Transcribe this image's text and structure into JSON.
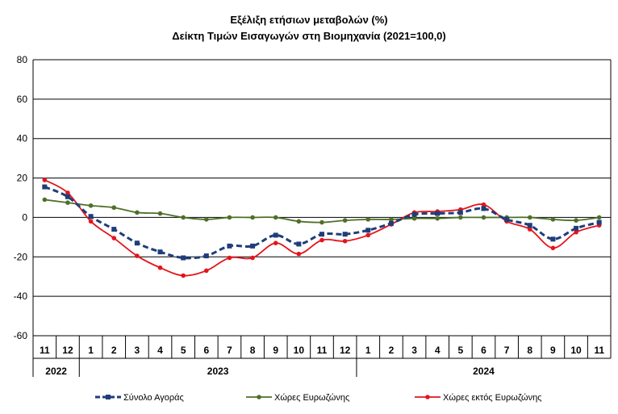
{
  "chart_data": {
    "type": "line",
    "title": "Εξέλιξη ετήσιων μεταβολών (%)",
    "subtitle": "Δείκτη Τιμών Εισαγωγών στη Βιομηχανία (2021=100,0)",
    "ylim": [
      -60,
      80
    ],
    "yticks": [
      -60,
      -40,
      -20,
      0,
      20,
      40,
      60,
      80
    ],
    "grid": true,
    "legend_position": "bottom",
    "categories": [
      "11",
      "12",
      "1",
      "2",
      "3",
      "4",
      "5",
      "6",
      "7",
      "8",
      "9",
      "10",
      "11",
      "12",
      "1",
      "2",
      "3",
      "4",
      "5",
      "6",
      "7",
      "8",
      "9",
      "10",
      "11"
    ],
    "year_groups": [
      {
        "label": "2022",
        "start": 0,
        "end": 1
      },
      {
        "label": "2023",
        "start": 2,
        "end": 13
      },
      {
        "label": "2024",
        "start": 14,
        "end": 24
      }
    ],
    "series": [
      {
        "name": "Σύνολο Αγοράς",
        "color": "#1f3d7a",
        "style": "dashed-square",
        "values": [
          15.5,
          10.5,
          0.5,
          -6,
          -13,
          -17.5,
          -20.5,
          -19.5,
          -14.5,
          -14.5,
          -9,
          -13.5,
          -8.5,
          -8.5,
          -6.5,
          -3,
          1.5,
          2,
          2.5,
          4.5,
          -1,
          -4,
          -11,
          -5.5,
          -2.5
        ]
      },
      {
        "name": "Χώρες Ευρωζώνης",
        "color": "#4f6f28",
        "style": "solid-dot",
        "values": [
          9,
          7.5,
          6,
          5,
          2.5,
          2,
          0,
          -1,
          0,
          0,
          0,
          -2,
          -2.5,
          -1.5,
          -1,
          -1,
          -0.5,
          -0.5,
          0,
          0,
          0,
          0,
          -1,
          -1.5,
          0
        ]
      },
      {
        "name": "Χώρες εκτός Ευρωζώνης",
        "color": "#e3151b",
        "style": "solid-dot",
        "values": [
          19,
          12.5,
          -2,
          -10.5,
          -19.5,
          -25.5,
          -29.5,
          -27,
          -20.5,
          -20.5,
          -13,
          -18.5,
          -11.5,
          -12,
          -9,
          -3.5,
          2.5,
          3,
          4,
          6.5,
          -2,
          -6,
          -15.5,
          -7.5,
          -4
        ]
      }
    ]
  }
}
